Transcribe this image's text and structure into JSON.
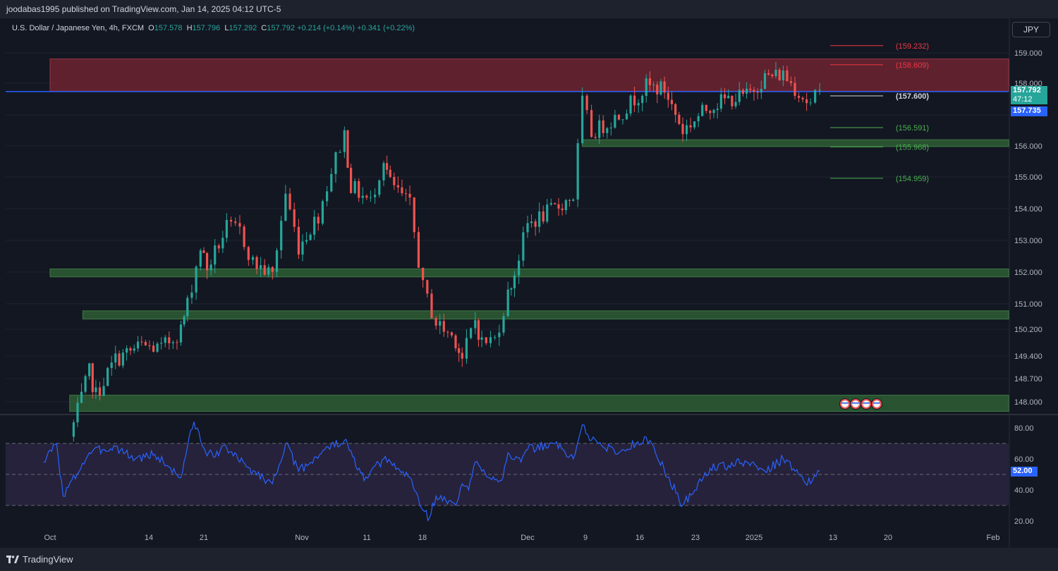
{
  "header": {
    "publisher": "joodabas1995 published on TradingView.com, Jan 14, 2025 04:12 UTC-5"
  },
  "legend": {
    "title": "U.S. Dollar / Japanese Yen, 4h, FXCM",
    "o_label": "O",
    "o_value": "157.578",
    "h_label": "H",
    "h_value": "157.796",
    "l_label": "L",
    "l_value": "157.292",
    "c_label": "C",
    "c_value": "157.792",
    "change": "+0.214 (+0.14%)",
    "change2": "+0.341 (+0.22%)"
  },
  "currency_button": "JPY",
  "footer": {
    "brand": "TradingView"
  },
  "price_tags": {
    "last_price": "157.792",
    "countdown": "47:12",
    "line_price": "157.735",
    "rsi_value": "52.00"
  },
  "colors": {
    "background": "#131722",
    "up": "#26a69a",
    "down": "#ef5350",
    "resistance_zone": "#7a2533",
    "support_zone": "#2e5d34",
    "rsi_line": "#2962ff",
    "rsi_band": "#2a2540",
    "level_red": "#f23645",
    "level_green": "#4caf50"
  },
  "chart_data": [
    {
      "type": "candlestick",
      "x_ticks": [
        "Oct",
        "14",
        "21",
        "Nov",
        "11",
        "18",
        "Dec",
        "9",
        "16",
        "23",
        "2025",
        "13",
        "20",
        "Feb"
      ],
      "y_ticks": [
        "159.000",
        "158.000",
        "157.000",
        "156.000",
        "155.000",
        "154.000",
        "153.000",
        "152.000",
        "151.000",
        "150.200",
        "149.400",
        "148.700",
        "148.000"
      ],
      "ylim": [
        147.6,
        160.0
      ],
      "anchors": [
        {
          "date": "Oct 4",
          "price": 146.9
        },
        {
          "date": "Oct 7",
          "price": 148.9
        },
        {
          "date": "Oct 8",
          "price": 148.2
        },
        {
          "date": "Oct 11",
          "price": 149.3
        },
        {
          "date": "Oct 15",
          "price": 149.7
        },
        {
          "date": "Oct 18",
          "price": 149.6
        },
        {
          "date": "Oct 21",
          "price": 150.2
        },
        {
          "date": "Oct 22",
          "price": 151.0
        },
        {
          "date": "Oct 24",
          "price": 152.8
        },
        {
          "date": "Oct 25",
          "price": 152.1
        },
        {
          "date": "Oct 28",
          "price": 153.4
        },
        {
          "date": "Oct 30",
          "price": 153.3
        },
        {
          "date": "Nov 1",
          "price": 152.3
        },
        {
          "date": "Nov 4",
          "price": 151.9
        },
        {
          "date": "Nov 6",
          "price": 154.5
        },
        {
          "date": "Nov 8",
          "price": 152.8
        },
        {
          "date": "Nov 11",
          "price": 153.8
        },
        {
          "date": "Nov 13",
          "price": 155.2
        },
        {
          "date": "Nov 15",
          "price": 156.4
        },
        {
          "date": "Nov 16",
          "price": 154.7
        },
        {
          "date": "Nov 19",
          "price": 154.2
        },
        {
          "date": "Nov 21",
          "price": 155.6
        },
        {
          "date": "Nov 22",
          "price": 154.8
        },
        {
          "date": "Nov 25",
          "price": 154.1
        },
        {
          "date": "Nov 27",
          "price": 151.5
        },
        {
          "date": "Nov 29",
          "price": 150.4
        },
        {
          "date": "Dec 2",
          "price": 149.9
        },
        {
          "date": "Dec 3",
          "price": 149.3
        },
        {
          "date": "Dec 5",
          "price": 150.5
        },
        {
          "date": "Dec 6",
          "price": 149.8
        },
        {
          "date": "Dec 8",
          "price": 149.9
        },
        {
          "date": "Dec 10",
          "price": 151.3
        },
        {
          "date": "Dec 11",
          "price": 152.0
        },
        {
          "date": "Dec 13",
          "price": 153.5
        },
        {
          "date": "Dec 16",
          "price": 154.0
        },
        {
          "date": "Dec 18",
          "price": 154.4
        },
        {
          "date": "Dec 19",
          "price": 157.4
        },
        {
          "date": "Dec 20",
          "price": 156.4
        },
        {
          "date": "Dec 23",
          "price": 157.0
        },
        {
          "date": "Dec 26",
          "price": 157.9
        },
        {
          "date": "Dec 28",
          "price": 157.8
        },
        {
          "date": "Dec 30",
          "price": 156.5
        },
        {
          "date": "Jan 2",
          "price": 157.3
        },
        {
          "date": "Jan 4",
          "price": 157.5
        },
        {
          "date": "Jan 6",
          "price": 157.6
        },
        {
          "date": "Jan 8",
          "price": 158.2
        },
        {
          "date": "Jan 10",
          "price": 158.3
        },
        {
          "date": "Jan 13",
          "price": 157.3
        },
        {
          "date": "Jan 14",
          "price": 157.79
        }
      ],
      "zones": [
        {
          "kind": "resistance",
          "from": 157.75,
          "to": 158.8,
          "start": "Oct 1"
        },
        {
          "kind": "support",
          "from": 155.98,
          "to": 156.2,
          "start": "Dec 19"
        },
        {
          "kind": "support",
          "from": 151.85,
          "to": 152.1,
          "start": "Oct 1"
        },
        {
          "kind": "support",
          "from": 150.52,
          "to": 150.78,
          "start": "Oct 6"
        },
        {
          "kind": "support",
          "from": 147.7,
          "to": 148.2,
          "start": "Oct 4"
        }
      ],
      "horizontal_line": 157.735,
      "levels": [
        {
          "label": "(159.232)",
          "value": 159.232,
          "color": "red"
        },
        {
          "label": "(158.609)",
          "value": 158.609,
          "color": "red"
        },
        {
          "label": "(157.600)",
          "value": 157.6,
          "color": "white"
        },
        {
          "label": "(156.591)",
          "value": 156.591,
          "color": "green"
        },
        {
          "label": "(155.968)",
          "value": 155.968,
          "color": "green"
        },
        {
          "label": "(154.959)",
          "value": 154.959,
          "color": "green"
        }
      ],
      "event_icons": 4
    },
    {
      "type": "line",
      "indicator": "RSI",
      "y_ticks": [
        "80.00",
        "60.00",
        "40.00",
        "20.00"
      ],
      "ylim": [
        20,
        85
      ],
      "band": [
        30,
        70
      ],
      "mid_line": 50,
      "anchors": [
        {
          "date": "Sep 30",
          "value": 58
        },
        {
          "date": "Oct 2",
          "value": 70
        },
        {
          "date": "Oct 3",
          "value": 36
        },
        {
          "date": "Oct 7",
          "value": 64
        },
        {
          "date": "Oct 9",
          "value": 66
        },
        {
          "date": "Oct 11",
          "value": 68
        },
        {
          "date": "Oct 14",
          "value": 60
        },
        {
          "date": "Oct 17",
          "value": 63
        },
        {
          "date": "Oct 21",
          "value": 48
        },
        {
          "date": "Oct 22",
          "value": 68
        },
        {
          "date": "Oct 23",
          "value": 84
        },
        {
          "date": "Oct 25",
          "value": 62
        },
        {
          "date": "Oct 28",
          "value": 67
        },
        {
          "date": "Oct 31",
          "value": 55
        },
        {
          "date": "Nov 4",
          "value": 44
        },
        {
          "date": "Nov 6",
          "value": 70
        },
        {
          "date": "Nov 8",
          "value": 52
        },
        {
          "date": "Nov 12",
          "value": 66
        },
        {
          "date": "Nov 15",
          "value": 72
        },
        {
          "date": "Nov 18",
          "value": 46
        },
        {
          "date": "Nov 21",
          "value": 60
        },
        {
          "date": "Nov 25",
          "value": 48
        },
        {
          "date": "Nov 27",
          "value": 27
        },
        {
          "date": "Nov 28",
          "value": 22
        },
        {
          "date": "Nov 29",
          "value": 36
        },
        {
          "date": "Dec 2",
          "value": 30
        },
        {
          "date": "Dec 3",
          "value": 44
        },
        {
          "date": "Dec 4",
          "value": 40
        },
        {
          "date": "Dec 5",
          "value": 58
        },
        {
          "date": "Dec 6",
          "value": 52
        },
        {
          "date": "Dec 9",
          "value": 46
        },
        {
          "date": "Dec 10",
          "value": 64
        },
        {
          "date": "Dec 12",
          "value": 58
        },
        {
          "date": "Dec 13",
          "value": 66
        },
        {
          "date": "Dec 16",
          "value": 70
        },
        {
          "date": "Dec 18",
          "value": 60
        },
        {
          "date": "Dec 19",
          "value": 82
        },
        {
          "date": "Dec 20",
          "value": 72
        },
        {
          "date": "Dec 23",
          "value": 64
        },
        {
          "date": "Dec 26",
          "value": 74
        },
        {
          "date": "Dec 27",
          "value": 64
        },
        {
          "date": "Dec 30",
          "value": 30
        },
        {
          "date": "Jan 2",
          "value": 54
        },
        {
          "date": "Jan 6",
          "value": 58
        },
        {
          "date": "Jan 8",
          "value": 52
        },
        {
          "date": "Jan 10",
          "value": 60
        },
        {
          "date": "Jan 13",
          "value": 44
        },
        {
          "date": "Jan 14",
          "value": 52
        }
      ]
    }
  ]
}
